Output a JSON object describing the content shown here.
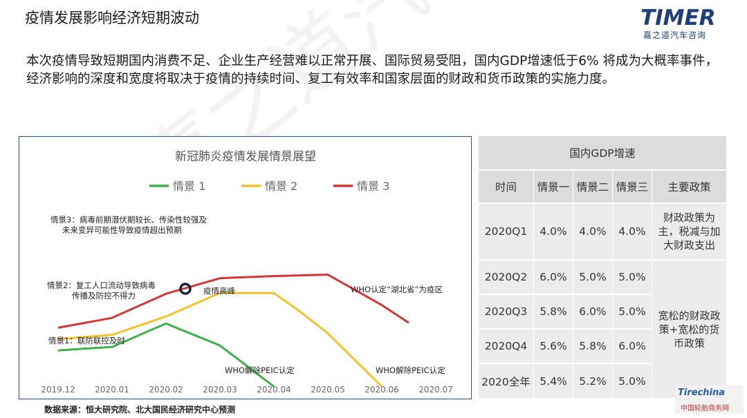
{
  "page": {
    "title": "疫情发展影响经济短期波动",
    "logo_text": "TIMER",
    "logo_sub": "嘉之道汽车咨询",
    "body_text": "本次疫情导致短期国内消费不足、企业生产经营难以正常开展、国际贸易受阻，国内GDP增速低于6% 将成为大概率事件，经济影响的深度和宽度将取决于疫情的持续时间、复工有效率和国家层面的财政和货币政策的实施力度。",
    "source": "数据来源：恒大研究院、北大国民经济研究中心预测",
    "watermark": "嘉之道汽车咨询",
    "badge_top": "Tirechina",
    "badge_bottom": "中国轮胎商务网"
  },
  "chart_data": {
    "type": "line",
    "title": "新冠肺炎疫情发展情景展望",
    "categories": [
      "2019.12",
      "2020.01",
      "2020.02",
      "2020.03",
      "2020.04",
      "2020.05",
      "2020.06",
      "2020.07"
    ],
    "y_axis": "none",
    "grid": false,
    "legend_position": "top",
    "series": [
      {
        "name": "情景 1",
        "color": "#3cb04a",
        "points": [
          [
            0,
            1.6
          ],
          [
            1,
            1.85
          ],
          [
            2,
            3.5
          ],
          [
            3,
            1.95
          ],
          [
            4,
            -0.95
          ]
        ]
      },
      {
        "name": "情景 2",
        "color": "#f2c22a",
        "points": [
          [
            0,
            2.4
          ],
          [
            1,
            2.7
          ],
          [
            2,
            4.0
          ],
          [
            3,
            5.65
          ],
          [
            4,
            5.65
          ],
          [
            4.5,
            4.3
          ],
          [
            5,
            2.8
          ],
          [
            6,
            -0.95
          ]
        ]
      },
      {
        "name": "情景 3",
        "color": "#d43535",
        "points": [
          [
            0,
            3.2
          ],
          [
            1,
            3.9
          ],
          [
            2,
            5.6
          ],
          [
            3,
            6.7
          ],
          [
            4,
            6.85
          ],
          [
            5,
            6.95
          ],
          [
            6,
            4.8
          ],
          [
            6.5,
            3.55
          ]
        ]
      }
    ],
    "annotations": {
      "s3_line1": "情景3：病毒前期潜伏期较长、传染性较强及",
      "s3_line2": "未来变异可能性导致疫情超出预期",
      "s2_line1": "情景2：复工人口流动导致病毒",
      "s2_line2": "传播及防控不得力",
      "s1": "情景1：联防联控及时",
      "peak": "疫情高峰",
      "who_end_1": "WHO解除PEIC认定",
      "who_end_2": "WHO解除PEIC认定",
      "who_hubei": "WHO认定“湖北省”为疫区"
    }
  },
  "table": {
    "title": "国内GDP增速",
    "headers": [
      "时间",
      "情景一",
      "情景二",
      "情景三",
      "主要政策"
    ],
    "rows": [
      {
        "time": "2020Q1",
        "s1": "4.0%",
        "s2": "4.0%",
        "s3": "4.0%"
      },
      {
        "time": "2020Q2",
        "s1": "6.0%",
        "s2": "5.0%",
        "s3": "5.0%"
      },
      {
        "time": "2020Q3",
        "s1": "5.8%",
        "s2": "6.0%",
        "s3": "5.0%"
      },
      {
        "time": "2020Q4",
        "s1": "5.6%",
        "s2": "5.8%",
        "s3": "6.0%"
      },
      {
        "time": "2020全年",
        "s1": "5.4%",
        "s2": "5.2%",
        "s3": "5.0%"
      }
    ],
    "policy_1": "财政政策为主，税减与加大财政支出",
    "policy_2": "宽松的财政政策+宽松的货币政策"
  }
}
